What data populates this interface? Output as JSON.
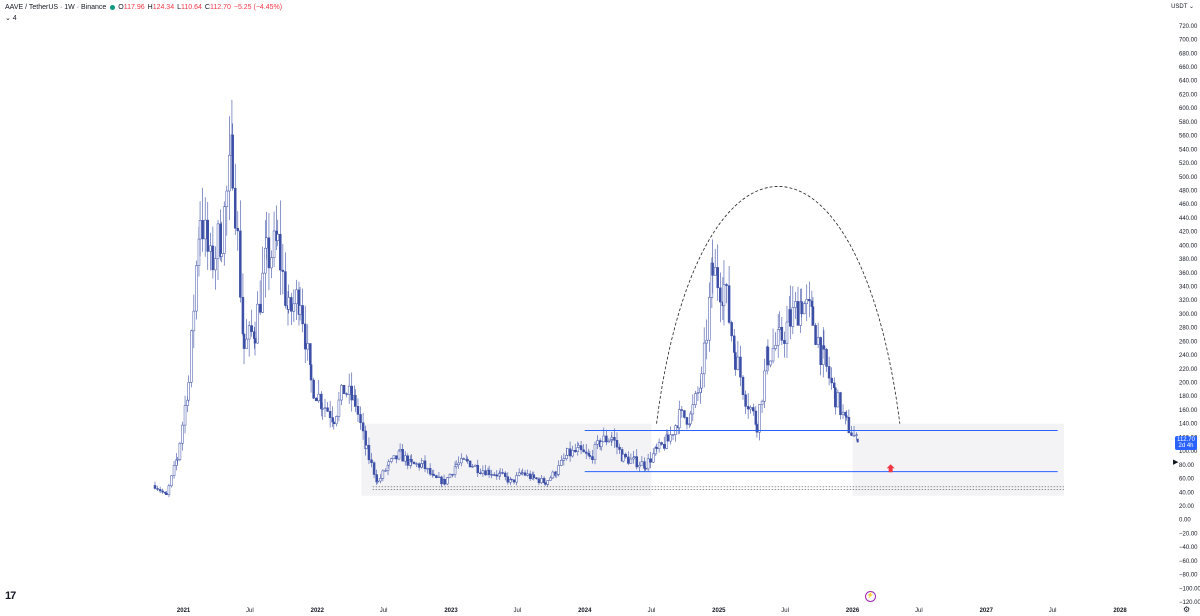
{
  "header": {
    "symbol": "AAVE / TetherUS · 1W · Binance",
    "open_label": "O",
    "open": "117.96",
    "high_label": "H",
    "high": "124.34",
    "low_label": "L",
    "low": "110.64",
    "close_label": "C",
    "close": "112.70",
    "change": "−5.25 (−4.45%)",
    "indicator_toggle": "⌄ 4"
  },
  "price_scale": {
    "currency": "USDT ⌄"
  },
  "last_price": {
    "value": "112.70",
    "countdown": "2d 4h"
  },
  "icons": {
    "logo": "tradingview-logo",
    "goto_realtime": "chevron-right-icon",
    "flash": "lightning-icon",
    "settings": "gear-icon"
  },
  "logo_text": "17",
  "colors": {
    "candle": "#3c4fa6",
    "background": "#ffffff",
    "last_price_bg": "#2962ff",
    "horizontal_line": "#2962ff",
    "arrow": "#f23645"
  },
  "chart_data": {
    "type": "candlestick",
    "title": "",
    "ylim": [
      -120,
      730
    ],
    "y_ticks": [
      "720.00",
      "700.00",
      "680.00",
      "660.00",
      "640.00",
      "620.00",
      "600.00",
      "580.00",
      "560.00",
      "540.00",
      "520.00",
      "500.00",
      "480.00",
      "460.00",
      "440.00",
      "420.00",
      "400.00",
      "380.00",
      "360.00",
      "340.00",
      "320.00",
      "300.00",
      "280.00",
      "260.00",
      "240.00",
      "220.00",
      "200.00",
      "180.00",
      "160.00",
      "140.00",
      "120.00",
      "100.00",
      "80.00",
      "60.00",
      "40.00",
      "20.00",
      "0.00",
      "−20.00",
      "−40.00",
      "−60.00",
      "−80.00",
      "−100.00",
      "−120.00"
    ],
    "x_ticks": [
      "2021",
      "Jul",
      "2022",
      "Jul",
      "2023",
      "Jul",
      "2024",
      "Jul",
      "2025",
      "Jul",
      "2026",
      "Jul",
      "2027",
      "Jul",
      "2028"
    ],
    "series": [
      {
        "name": "AAVE / TetherUS",
        "points": [
          {
            "date": "2020-10-15",
            "close": 50
          },
          {
            "date": "2020-11-15",
            "close": 35
          },
          {
            "date": "2020-12-15",
            "close": 90
          },
          {
            "date": "2021-01-15",
            "close": 200
          },
          {
            "date": "2021-02-15",
            "close": 450
          },
          {
            "date": "2021-03-15",
            "close": 370
          },
          {
            "date": "2021-04-15",
            "close": 420
          },
          {
            "date": "2021-05-15",
            "close": 530
          },
          {
            "date": "2021-06-15",
            "close": 250
          },
          {
            "date": "2021-07-15",
            "close": 280
          },
          {
            "date": "2021-08-15",
            "close": 380
          },
          {
            "date": "2021-09-15",
            "close": 400
          },
          {
            "date": "2021-10-15",
            "close": 300
          },
          {
            "date": "2021-11-15",
            "close": 330
          },
          {
            "date": "2021-12-15",
            "close": 200
          },
          {
            "date": "2022-01-15",
            "close": 170
          },
          {
            "date": "2022-02-15",
            "close": 150
          },
          {
            "date": "2022-03-15",
            "close": 190
          },
          {
            "date": "2022-04-15",
            "close": 170
          },
          {
            "date": "2022-05-15",
            "close": 100
          },
          {
            "date": "2022-06-15",
            "close": 55
          },
          {
            "date": "2022-07-15",
            "close": 80
          },
          {
            "date": "2022-08-15",
            "close": 95
          },
          {
            "date": "2022-09-15",
            "close": 80
          },
          {
            "date": "2022-10-15",
            "close": 80
          },
          {
            "date": "2022-11-15",
            "close": 60
          },
          {
            "date": "2022-12-15",
            "close": 55
          },
          {
            "date": "2023-01-15",
            "close": 80
          },
          {
            "date": "2023-02-15",
            "close": 85
          },
          {
            "date": "2023-03-15",
            "close": 75
          },
          {
            "date": "2023-04-15",
            "close": 70
          },
          {
            "date": "2023-05-15",
            "close": 65
          },
          {
            "date": "2023-06-15",
            "close": 55
          },
          {
            "date": "2023-07-15",
            "close": 68
          },
          {
            "date": "2023-08-15",
            "close": 60
          },
          {
            "date": "2023-09-15",
            "close": 55
          },
          {
            "date": "2023-10-15",
            "close": 70
          },
          {
            "date": "2023-11-15",
            "close": 95
          },
          {
            "date": "2023-12-15",
            "close": 100
          },
          {
            "date": "2024-01-15",
            "close": 90
          },
          {
            "date": "2024-02-15",
            "close": 115
          },
          {
            "date": "2024-03-15",
            "close": 120
          },
          {
            "date": "2024-04-15",
            "close": 90
          },
          {
            "date": "2024-05-15",
            "close": 85
          },
          {
            "date": "2024-06-15",
            "close": 80
          },
          {
            "date": "2024-07-15",
            "close": 100
          },
          {
            "date": "2024-08-15",
            "close": 115
          },
          {
            "date": "2024-09-15",
            "close": 150
          },
          {
            "date": "2024-10-15",
            "close": 150
          },
          {
            "date": "2024-11-15",
            "close": 200
          },
          {
            "date": "2024-12-15",
            "close": 360
          },
          {
            "date": "2025-01-15",
            "close": 340
          },
          {
            "date": "2025-02-15",
            "close": 240
          },
          {
            "date": "2025-03-15",
            "close": 180
          },
          {
            "date": "2025-04-15",
            "close": 140
          },
          {
            "date": "2025-05-15",
            "close": 240
          },
          {
            "date": "2025-06-15",
            "close": 260
          },
          {
            "date": "2025-07-15",
            "close": 290
          },
          {
            "date": "2025-08-15",
            "close": 320
          },
          {
            "date": "2025-09-15",
            "close": 290
          },
          {
            "date": "2025-10-15",
            "close": 230
          },
          {
            "date": "2025-11-15",
            "close": 180
          },
          {
            "date": "2025-12-15",
            "close": 140
          },
          {
            "date": "2026-01-15",
            "close": 112.7
          }
        ]
      }
    ],
    "horizontal_lines": [
      130,
      70
    ],
    "annotations": [
      "dashed arc",
      "accumulation rectangles",
      "up arrow"
    ],
    "grid": false
  }
}
